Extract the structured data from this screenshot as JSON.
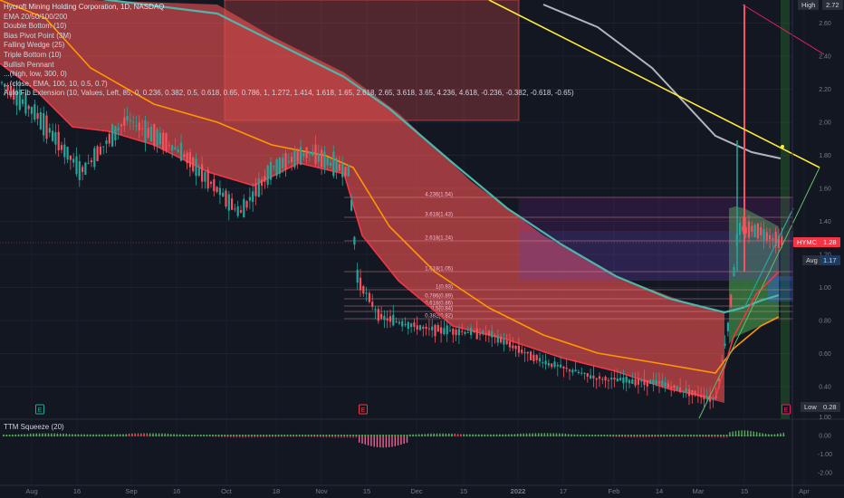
{
  "legend": {
    "title": "Hycroft Mining Holding Corporation, 1D, NASDAQ",
    "lines": [
      "EMA 20/50/100/200",
      "Double Bottom (10)",
      "Bias Pivot Point (3M)",
      "Falling Wedge (25)",
      "Triple Bottom (10)",
      "Bullish Pennant",
      "...(high, low, 300, 0)",
      "...(close, EMA, 100, 10, 0.5, 0.7)",
      "Auto Fib Extension (10, Values, Left, 85, 0, 0.236, 0.382, 0.5, 0.618, 0.65, 0.786, 1, 1.272, 1.414, 1.618, 1.65, 2.618, 2.65, 3.618, 3.65, 4.236, 4.618, -0.236, -0.382, -0.618, -0.65)"
    ]
  },
  "indicator_label": "TTM Squeeze (20)",
  "price_axis": [
    "2.60",
    "2.40",
    "2.20",
    "2.00",
    "1.80",
    "1.60",
    "1.40",
    "1.20",
    "1.00",
    "0.80",
    "0.60",
    "0.40"
  ],
  "osc_axis": [
    "0.00",
    "-1.00",
    "-2.00"
  ],
  "osc_axis_top": "1.00",
  "time_axis": [
    "Aug",
    "16",
    "Sep",
    "16",
    "Oct",
    "18",
    "Nov",
    "15",
    "Dec",
    "15",
    "2022",
    "17",
    "Feb",
    "14",
    "Mar",
    "15",
    "Apr"
  ],
  "tags": {
    "high_label": "High",
    "high_value": "2.72",
    "ticker": "HYMC",
    "last": "1.28",
    "avg_label": "Avg",
    "avg_value": "1.17",
    "low_label": "Low",
    "low_value": "0.28"
  },
  "fib_labels": [
    "4.236(1.54)",
    "3.618(1.43)",
    "2.618(1.24)",
    "1.618(1.05)",
    "1(0.93)",
    "0.786(0.89)",
    "0.618(0.86)",
    "0.5(0.84)",
    "0.382(0.82)"
  ],
  "earnings_marker": "E",
  "colors": {
    "background": "#131722",
    "up": "#26a69a",
    "down": "#ef5350",
    "ema20": "#f23645",
    "ema50": "#ff9800",
    "ema100": "#4db6ac",
    "ema200": "#b2b5be",
    "trendline_yellow": "#ffeb3b",
    "ticker_tag": "#f23645"
  }
}
